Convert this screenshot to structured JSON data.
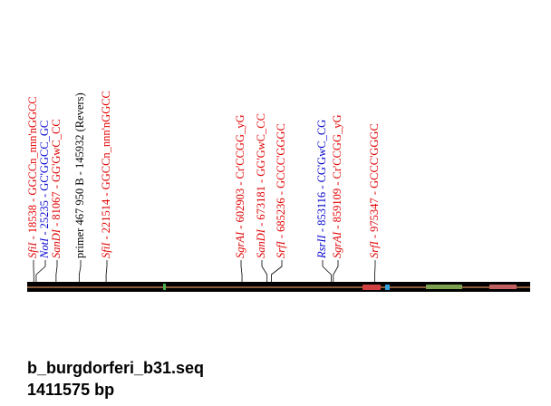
{
  "map": {
    "length": 1411575,
    "sites": [
      {
        "name": "SfiI",
        "rest": " - 18538 - GGCCn_nnn'nGGCC",
        "position": 18538,
        "color": "#e00000",
        "italic": true
      },
      {
        "name": "NotI",
        "rest": " - 25235 - GC'GGCC_GC",
        "position": 25235,
        "color": "#0000cc",
        "italic": true
      },
      {
        "name": "SanDI",
        "rest": " - 81067 - GG'GwC_CC",
        "position": 81067,
        "color": "#e00000",
        "italic": true
      },
      {
        "name": "primer 467 950 B",
        "rest": " - 145932 (Revers)",
        "position": 145932,
        "color": "#000000",
        "italic": false
      },
      {
        "name": "SfiI",
        "rest": " - 221514 - GGCCn_nnn'nGGCC",
        "position": 221514,
        "color": "#e00000",
        "italic": true
      },
      {
        "name": "SgrAI",
        "rest": " - 602903 - Cr'CCGG_yG",
        "position": 602903,
        "color": "#e00000",
        "italic": true
      },
      {
        "name": "SanDI",
        "rest": " - 673181 - GG'GwC_CC",
        "position": 673181,
        "color": "#e00000",
        "italic": true
      },
      {
        "name": "SrfI",
        "rest": " - 685236 - GCCC'GGGC",
        "position": 685236,
        "color": "#e00000",
        "italic": true
      },
      {
        "name": "RsrII",
        "rest": " - 853116 - CG'GwC_CG",
        "position": 853116,
        "color": "#0000cc",
        "italic": true
      },
      {
        "name": "SgrAI",
        "rest": " - 859109 - Cr'CCGG_yG",
        "position": 859109,
        "color": "#e00000",
        "italic": true
      },
      {
        "name": "SrfI",
        "rest": " - 975347 - GCCC'GGGC",
        "position": 975347,
        "color": "#e00000",
        "italic": true
      }
    ]
  },
  "footer": {
    "filename": "b_burgdorferi_b31.seq",
    "length_label": "1411575 bp"
  }
}
